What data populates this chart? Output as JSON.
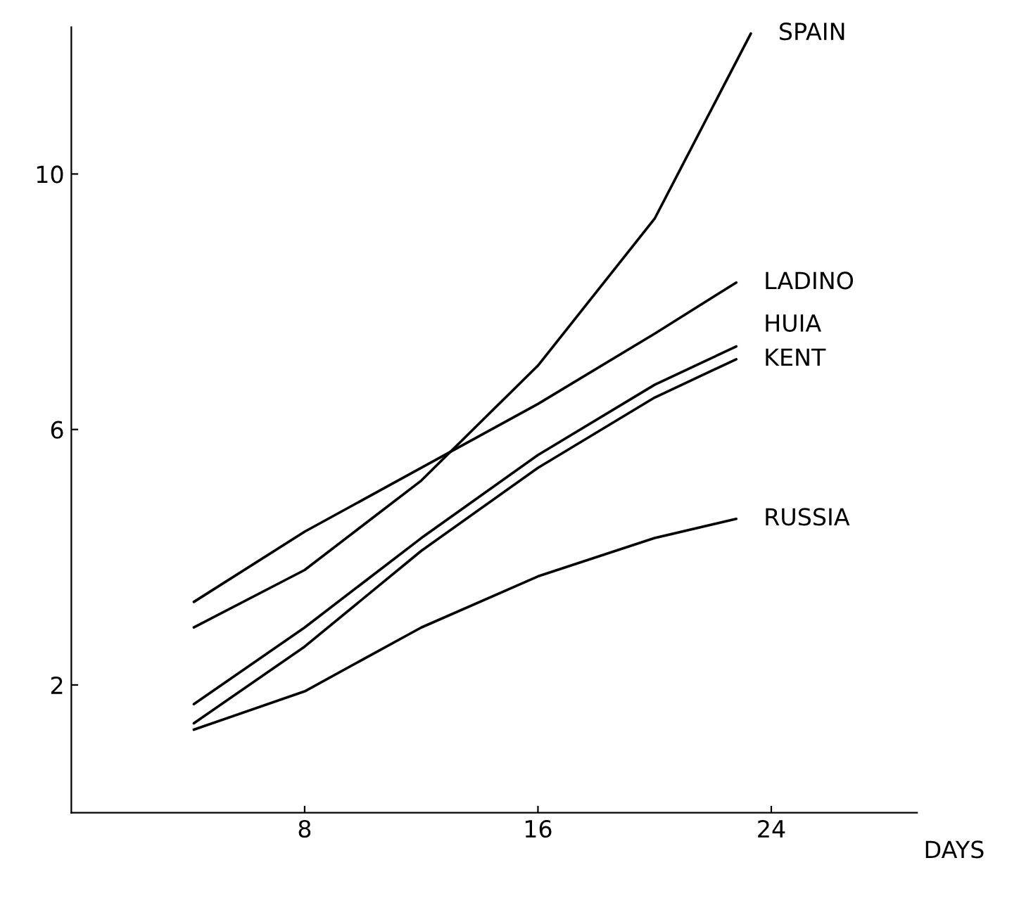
{
  "chart_data": {
    "type": "line",
    "xlabel": "DAYS",
    "xlim": [
      0,
      29
    ],
    "ylim": [
      0,
      12.3
    ],
    "xticks": [
      8,
      16,
      24
    ],
    "yticks": [
      2,
      6,
      10
    ],
    "grid": false,
    "legend": false,
    "marker": "none",
    "line_style": "solid",
    "series": [
      {
        "name": "SPAIN",
        "color": "#000000",
        "x": [
          4.2,
          8,
          12,
          16,
          20,
          23.3
        ],
        "values": [
          2.9,
          3.8,
          5.2,
          7.0,
          9.3,
          12.2
        ]
      },
      {
        "name": "LADINO",
        "color": "#000000",
        "x": [
          4.2,
          8,
          12,
          16,
          20,
          22.8
        ],
        "values": [
          3.3,
          4.4,
          5.4,
          6.4,
          7.5,
          8.3
        ]
      },
      {
        "name": "HUIA",
        "color": "#000000",
        "x": [
          4.2,
          8,
          12,
          16,
          20,
          22.8
        ],
        "values": [
          1.7,
          2.9,
          4.3,
          5.6,
          6.7,
          7.3
        ]
      },
      {
        "name": "KENT",
        "color": "#000000",
        "x": [
          4.2,
          8,
          12,
          16,
          20,
          22.8
        ],
        "values": [
          1.4,
          2.6,
          4.1,
          5.4,
          6.5,
          7.1
        ]
      },
      {
        "name": "RUSSIA",
        "color": "#000000",
        "x": [
          4.2,
          8,
          12,
          16,
          20,
          22.8
        ],
        "values": [
          1.3,
          1.9,
          2.9,
          3.7,
          4.3,
          4.6
        ]
      }
    ]
  }
}
